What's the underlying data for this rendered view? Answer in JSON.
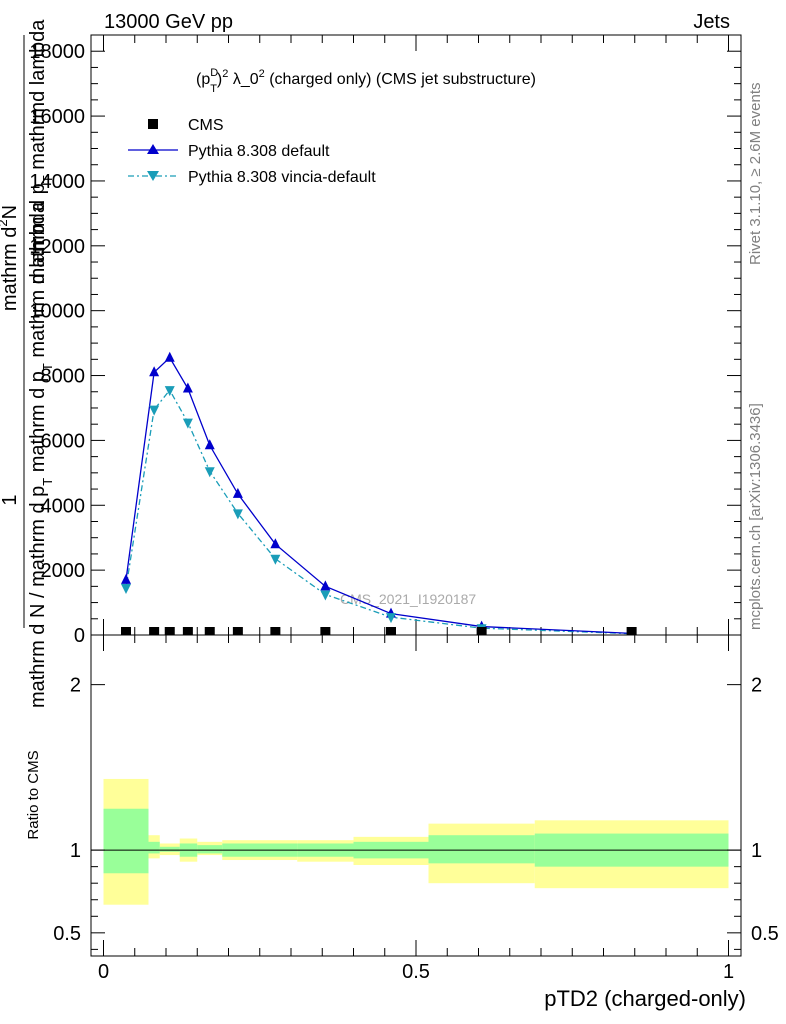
{
  "header": {
    "left": "13000 GeV pp",
    "right": "Jets"
  },
  "side_labels": {
    "rivet": "Rivet 3.1.10, ≥ 2.6M events",
    "mcplots": "mcplots.cern.ch [arXiv:1306.3436]"
  },
  "watermark": "CMS_2021_I1920187",
  "colors": {
    "cms": "#000000",
    "pythia_default": "#0000cc",
    "pythia_vincia": "#1a9db8",
    "band_inner": "#99ff99",
    "band_outer": "#ffff99"
  },
  "chart_data": [
    {
      "type": "line",
      "title": "(p_T^D)^2 λ_0^2 (charged only) (CMS jet substructure)",
      "title_parts": {
        "base": "(p",
        "sup": "D",
        "sub": "T",
        "after": ")",
        "sup2": "2",
        "mid": " λ_0",
        "sup3": "2",
        "tail": " (charged only) (CMS jet substructure)"
      },
      "ylabel": {
        "one": "1",
        "numerator": "mathrm d^2N",
        "denominator": "mathrm d N / mathrm d p_T mathrm d lambda",
        "extra": "mathrm d p_T mathrm d lambda"
      },
      "ylabel_parts": {
        "one": "1",
        "top_a": "mathrm d",
        "top_sup": "2",
        "top_b": "N",
        "mid_a": "mathrm d p",
        "mid_sub": "T",
        "mid_b": " mathrmd lambda",
        "bot_a": "mathrm d N / mathrm d p",
        "bot_sub": "T",
        "bot_b": " mathrm d p",
        "bot_sub2": "T",
        "bot_c": " mathrm d lambda"
      },
      "ylim": [
        0,
        18500
      ],
      "xlim": [
        -0.02,
        1.02
      ],
      "yticks": [
        {
          "v": 0,
          "label": "0"
        },
        {
          "v": 2000,
          "label": "2000"
        },
        {
          "v": 4000,
          "label": "4000"
        },
        {
          "v": 6000,
          "label": "6000"
        },
        {
          "v": 8000,
          "label": "8000"
        },
        {
          "v": 10000,
          "label": "10000"
        },
        {
          "v": 12000,
          "label": "12000"
        },
        {
          "v": 14000,
          "label": "14000"
        },
        {
          "v": 16000,
          "label": "16000"
        },
        {
          "v": 18000,
          "label": "18000"
        }
      ],
      "legend": {
        "placement": "top-left",
        "entries": [
          {
            "name": "CMS",
            "marker": "square"
          },
          {
            "name": "Pythia 8.308 default",
            "marker": "triangle-up"
          },
          {
            "name": "Pythia 8.308 vincia-default",
            "marker": "triangle-down"
          }
        ]
      },
      "series": [
        {
          "name": "CMS",
          "x": [
            0.036,
            0.081,
            0.106,
            0.135,
            0.17,
            0.215,
            0.275,
            0.355,
            0.46,
            0.605,
            0.845
          ],
          "values": [
            10,
            15,
            20,
            20,
            15,
            10,
            5,
            5,
            3,
            1,
            0
          ]
        },
        {
          "name": "Pythia 8.308 default",
          "x": [
            0.036,
            0.081,
            0.106,
            0.135,
            0.17,
            0.215,
            0.275,
            0.355,
            0.46,
            0.605,
            0.845
          ],
          "values": [
            1700,
            8100,
            8550,
            7600,
            5850,
            4350,
            2800,
            1500,
            660,
            260,
            50
          ]
        },
        {
          "name": "Pythia 8.308 vincia-default",
          "x": [
            0.036,
            0.081,
            0.106,
            0.135,
            0.17,
            0.215,
            0.275,
            0.355,
            0.46,
            0.605,
            0.845
          ],
          "values": [
            1450,
            6950,
            7550,
            6550,
            5050,
            3750,
            2350,
            1250,
            550,
            210,
            40
          ]
        }
      ]
    },
    {
      "type": "area",
      "ylabel": "Ratio to CMS",
      "ylim": [
        0.36,
        2.3
      ],
      "ref_line": 1,
      "yticks": [
        {
          "v": 0.5,
          "label": "0.5"
        },
        {
          "v": 1,
          "label": "1"
        },
        {
          "v": 2,
          "label": "2"
        }
      ],
      "xticks": [
        {
          "v": 0,
          "label": "0"
        },
        {
          "v": 0.5,
          "label": "0.5"
        },
        {
          "v": 1,
          "label": "1"
        }
      ],
      "xlabel": "pTD2 (charged-only)",
      "bins": [
        {
          "lo": 0.0,
          "hi": 0.072,
          "inner": [
            0.86,
            1.25
          ],
          "outer": [
            0.67,
            1.43
          ]
        },
        {
          "lo": 0.072,
          "hi": 0.09,
          "inner": [
            0.98,
            1.05
          ],
          "outer": [
            0.95,
            1.09
          ]
        },
        {
          "lo": 0.09,
          "hi": 0.122,
          "inner": [
            0.99,
            1.02
          ],
          "outer": [
            0.97,
            1.04
          ]
        },
        {
          "lo": 0.122,
          "hi": 0.15,
          "inner": [
            0.96,
            1.04
          ],
          "outer": [
            0.93,
            1.07
          ]
        },
        {
          "lo": 0.15,
          "hi": 0.19,
          "inner": [
            0.98,
            1.03
          ],
          "outer": [
            0.97,
            1.05
          ]
        },
        {
          "lo": 0.19,
          "hi": 0.24,
          "inner": [
            0.96,
            1.04
          ],
          "outer": [
            0.94,
            1.06
          ]
        },
        {
          "lo": 0.24,
          "hi": 0.31,
          "inner": [
            0.96,
            1.04
          ],
          "outer": [
            0.94,
            1.06
          ]
        },
        {
          "lo": 0.31,
          "hi": 0.4,
          "inner": [
            0.96,
            1.04
          ],
          "outer": [
            0.93,
            1.06
          ]
        },
        {
          "lo": 0.4,
          "hi": 0.52,
          "inner": [
            0.95,
            1.05
          ],
          "outer": [
            0.91,
            1.08
          ]
        },
        {
          "lo": 0.52,
          "hi": 0.69,
          "inner": [
            0.92,
            1.09
          ],
          "outer": [
            0.8,
            1.16
          ]
        },
        {
          "lo": 0.69,
          "hi": 1.0,
          "inner": [
            0.9,
            1.1
          ],
          "outer": [
            0.77,
            1.18
          ]
        }
      ]
    }
  ]
}
